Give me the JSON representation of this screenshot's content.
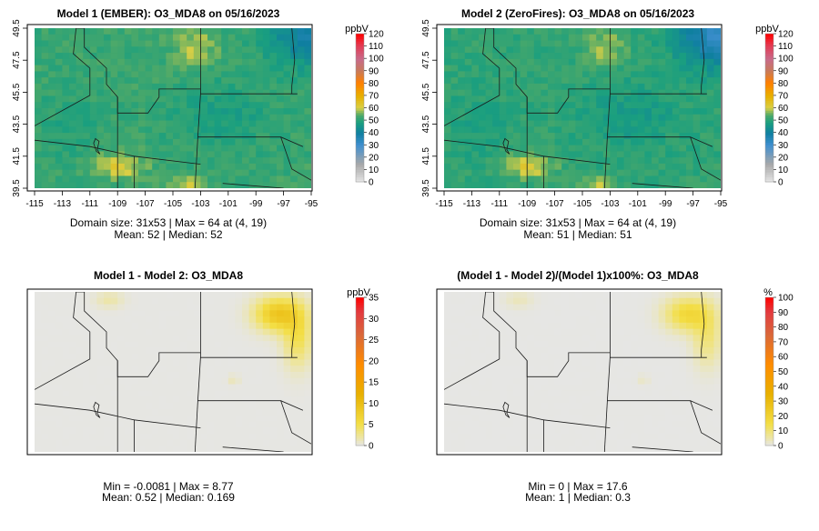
{
  "chart_data": [
    {
      "type": "heatmap",
      "title": "Model 1 (EMBER): O3_MDA8 on 05/16/2023",
      "xticks": [
        "-115",
        "-113",
        "-111",
        "-109",
        "-107",
        "-105",
        "-103",
        "-101",
        "-99",
        "-97",
        "-95"
      ],
      "yticks": [
        "39.5",
        "41.5",
        "43.5",
        "45.5",
        "47.5",
        "49.5"
      ],
      "xlim": [
        -115,
        -95
      ],
      "ylim": [
        39.5,
        49.5
      ],
      "legend_title": "ppbV",
      "legend_ticks": [
        "0",
        "10",
        "20",
        "30",
        "40",
        "50",
        "60",
        "70",
        "80",
        "90",
        "100",
        "110",
        "120"
      ],
      "scale_max": 120,
      "palette": "concentration",
      "stats_line1": "Domain size: 31x53 | Max = 64 at (4, 19)",
      "stats_line2": "Mean: 52 |  Median: 52",
      "features": {
        "base": 52,
        "northeast_low": 38,
        "south_high": 62,
        "lake_high": 63
      }
    },
    {
      "type": "heatmap",
      "title": "Model 2 (ZeroFires): O3_MDA8 on 05/16/2023",
      "xticks": [
        "-115",
        "-113",
        "-111",
        "-109",
        "-107",
        "-105",
        "-103",
        "-101",
        "-99",
        "-97",
        "-95"
      ],
      "yticks": [
        "39.5",
        "41.5",
        "43.5",
        "45.5",
        "47.5",
        "49.5"
      ],
      "xlim": [
        -115,
        -95
      ],
      "ylim": [
        39.5,
        49.5
      ],
      "legend_title": "ppbV",
      "legend_ticks": [
        "0",
        "10",
        "20",
        "30",
        "40",
        "50",
        "60",
        "70",
        "80",
        "90",
        "100",
        "110",
        "120"
      ],
      "scale_max": 120,
      "palette": "concentration",
      "stats_line1": "Domain size: 31x53 | Max = 64 at (4, 19)",
      "stats_line2": "Mean: 51 |  Median: 51",
      "features": {
        "base": 51,
        "northeast_low": 32,
        "south_high": 62,
        "lake_high": 63
      }
    },
    {
      "type": "heatmap",
      "title": "Model 1 - Model 2: O3_MDA8",
      "legend_title": "ppbV",
      "legend_ticks": [
        "0",
        "5",
        "10",
        "15",
        "20",
        "25",
        "30",
        "35"
      ],
      "scale_max": 35,
      "palette": "difference",
      "stats_line1": "Min = -0.0081 | Max = 8.77",
      "stats_line2": "Mean: 0.52 |  Median: 0.169",
      "features": {
        "base": 0.1,
        "northeast_peak": 8.77
      }
    },
    {
      "type": "heatmap",
      "title": "(Model 1 - Model 2)/(Model 1)x100%: O3_MDA8",
      "legend_title": "%",
      "legend_ticks": [
        "0",
        "10",
        "20",
        "30",
        "40",
        "50",
        "60",
        "70",
        "80",
        "90",
        "100"
      ],
      "scale_max": 100,
      "palette": "difference",
      "stats_line1": "Min = 0 | Max = 17.6",
      "stats_line2": "Mean: 1 |  Median: 0.3",
      "features": {
        "base": 0.2,
        "northeast_peak": 17.6
      }
    }
  ]
}
